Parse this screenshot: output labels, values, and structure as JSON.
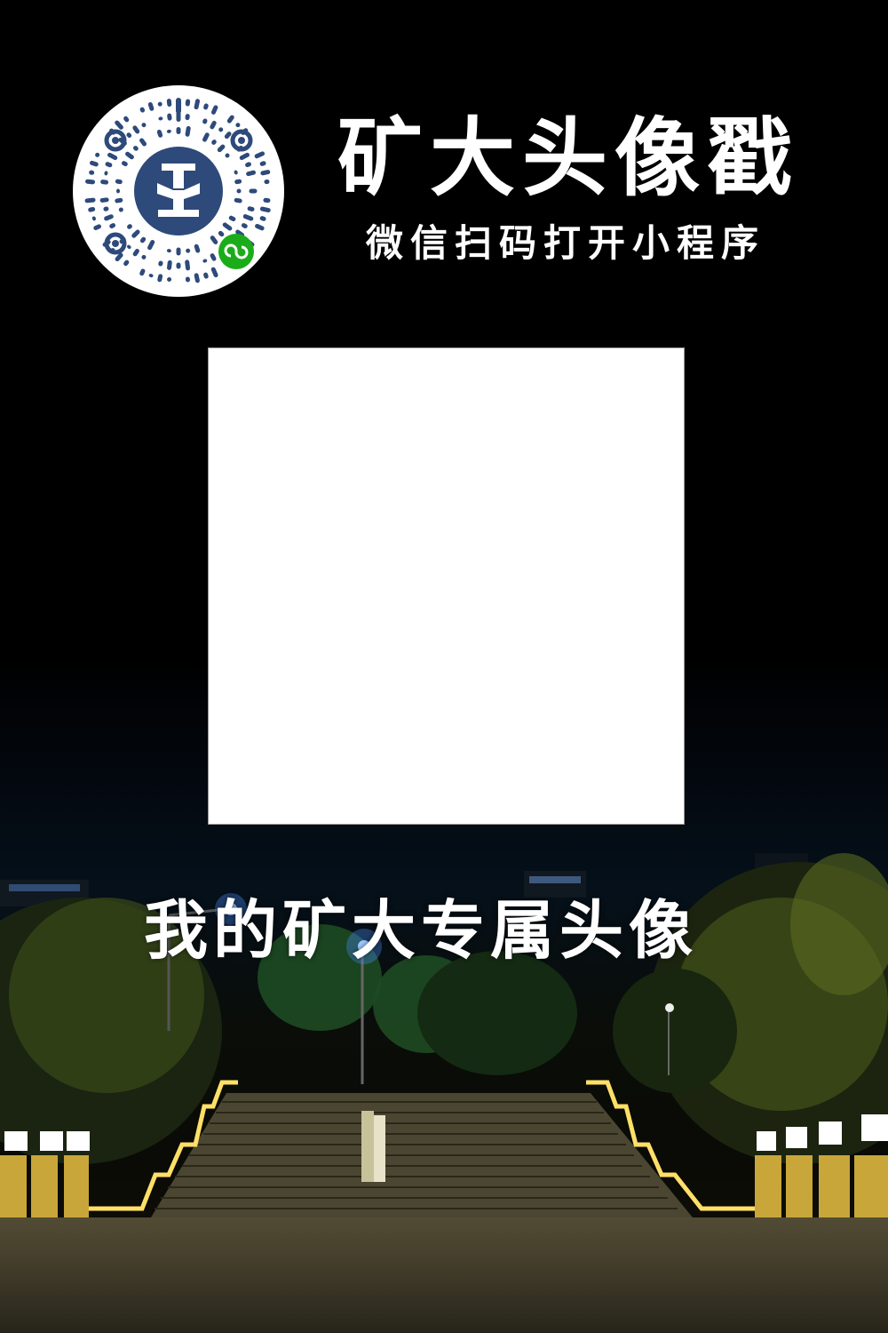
{
  "poster": {
    "title": "矿大头像戳",
    "subtitle": "微信扫码打开小程序",
    "slogan": "我的矿大专属头像"
  },
  "colors": {
    "background": "#000000",
    "text": "#ffffff",
    "qr_blue": "#2e4a7a",
    "wechat_green": "#1aad19",
    "stair_light": "#f5d54a"
  },
  "icons": {
    "qr": "mini-program-qr-code",
    "logo": "university-emblem",
    "badge": "wechat-mini-program-icon"
  }
}
